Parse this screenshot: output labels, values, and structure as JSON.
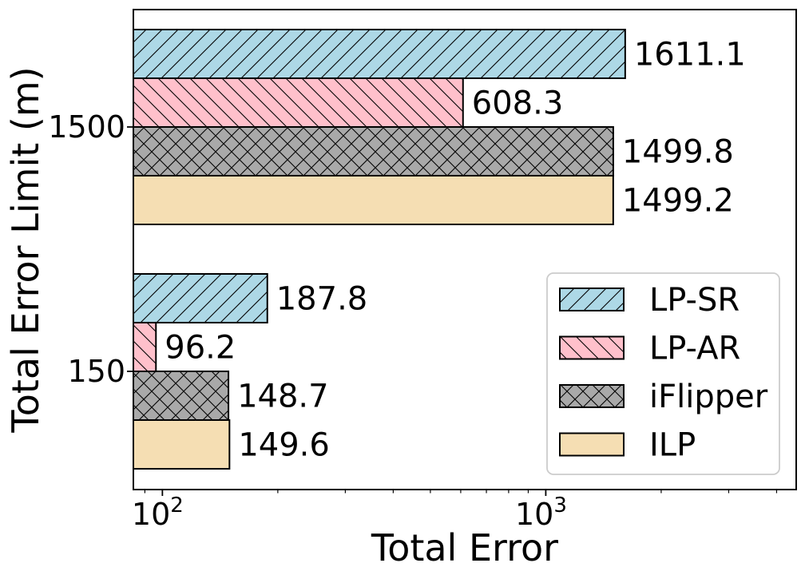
{
  "chart_data": {
    "type": "bar",
    "orientation": "horizontal",
    "x_scale": "log",
    "xlabel": "Total Error",
    "ylabel": "Total Error Limit (m)",
    "xlim": [
      84,
      4500
    ],
    "x_tick_values": [
      100,
      1000
    ],
    "x_tick_labels": [
      {
        "base": "10",
        "exp": "2"
      },
      {
        "base": "10",
        "exp": "3"
      }
    ],
    "categories": [
      "150",
      "1500"
    ],
    "series": [
      {
        "name": "LP-SR",
        "values": [
          187.8,
          1611.1
        ],
        "labels": [
          "187.8",
          "1611.1"
        ],
        "color": "#add8e6",
        "hatch": "diag-fwd"
      },
      {
        "name": "LP-AR",
        "values": [
          96.2,
          608.3
        ],
        "labels": [
          "96.2",
          "608.3"
        ],
        "color": "#ffc0cb",
        "hatch": "diag-back"
      },
      {
        "name": "iFlipper",
        "values": [
          148.7,
          1499.8
        ],
        "labels": [
          "148.7",
          "1499.8"
        ],
        "color": "#a9a9a9",
        "hatch": "cross"
      },
      {
        "name": "ILP",
        "values": [
          149.6,
          1499.2
        ],
        "labels": [
          "149.6",
          "1499.2"
        ],
        "color": "#f5deb3",
        "hatch": "none"
      }
    ],
    "legend": {
      "position": "lower-right"
    },
    "grid": false
  }
}
